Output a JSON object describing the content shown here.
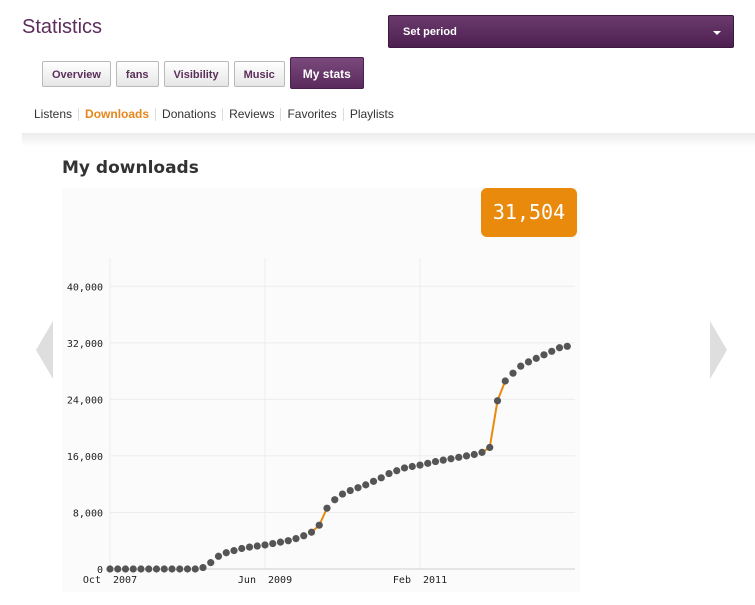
{
  "page": {
    "title": "Statistics"
  },
  "period": {
    "label": "Set period"
  },
  "tabs": [
    {
      "label": "Overview"
    },
    {
      "label": "fans"
    },
    {
      "label": "Visibility"
    },
    {
      "label": "Music"
    },
    {
      "label": "My stats"
    }
  ],
  "subnav": [
    {
      "label": "Listens"
    },
    {
      "label": "Downloads"
    },
    {
      "label": "Donations"
    },
    {
      "label": "Reviews"
    },
    {
      "label": "Favorites"
    },
    {
      "label": "Playlists"
    }
  ],
  "section": {
    "title": "My downloads",
    "total": "31,504"
  },
  "colors": {
    "brand": "#5b2f5c",
    "accent": "#e98a0c",
    "point": "#555555",
    "grid": "#ececec"
  },
  "icons": {
    "prev": "chevron-left-icon",
    "next": "chevron-right-icon",
    "dropdown": "caret-down-icon"
  },
  "chart_data": {
    "type": "line",
    "title": "",
    "xlabel": "",
    "ylabel": "",
    "grid": true,
    "xlim": [
      "2007-10",
      "2012-10"
    ],
    "ylim": [
      0,
      44000
    ],
    "yticks": [
      0,
      8000,
      16000,
      24000,
      32000,
      40000
    ],
    "ytick_labels": [
      "0",
      "8,000",
      "16,000",
      "24,000",
      "32,000",
      "40,000"
    ],
    "xticks": [
      "2007-10",
      "2009-06",
      "2011-02"
    ],
    "xtick_labels": [
      "Oct 2007",
      "Jun 2009",
      "Feb 2011"
    ],
    "series": [
      {
        "x": [
          "2007-10",
          "2007-11",
          "2007-12",
          "2008-01",
          "2008-02",
          "2008-03",
          "2008-04",
          "2008-05",
          "2008-06",
          "2008-07",
          "2008-08",
          "2008-09",
          "2008-10",
          "2008-11",
          "2008-12",
          "2009-01",
          "2009-02",
          "2009-03",
          "2009-04",
          "2009-05",
          "2009-06",
          "2009-07",
          "2009-08",
          "2009-09",
          "2009-10",
          "2009-11",
          "2009-12",
          "2010-01",
          "2010-02",
          "2010-03",
          "2010-04",
          "2010-05",
          "2010-06",
          "2010-07",
          "2010-08",
          "2010-09",
          "2010-10",
          "2010-11",
          "2010-12",
          "2011-01",
          "2011-02",
          "2011-03",
          "2011-04",
          "2011-05",
          "2011-06",
          "2011-07",
          "2011-08",
          "2011-09",
          "2011-10",
          "2011-11",
          "2011-12",
          "2012-01",
          "2012-02",
          "2012-03",
          "2012-04",
          "2012-05",
          "2012-06",
          "2012-07",
          "2012-08",
          "2012-09"
        ],
        "values": [
          0,
          0,
          0,
          0,
          0,
          0,
          0,
          0,
          0,
          0,
          0,
          0,
          200,
          900,
          1800,
          2300,
          2600,
          2900,
          3100,
          3250,
          3400,
          3600,
          3800,
          4000,
          4300,
          4700,
          5200,
          6200,
          8600,
          9800,
          10600,
          11100,
          11500,
          11900,
          12400,
          12900,
          13500,
          13900,
          14300,
          14500,
          14700,
          14950,
          15200,
          15400,
          15600,
          15800,
          16000,
          16200,
          16500,
          17200,
          23800,
          26600,
          27700,
          28700,
          29300,
          29800,
          30300,
          30800,
          31300,
          31504
        ],
        "emphasis_ranges": [
          [
            26,
            28
          ],
          [
            48,
            51
          ]
        ]
      }
    ]
  }
}
